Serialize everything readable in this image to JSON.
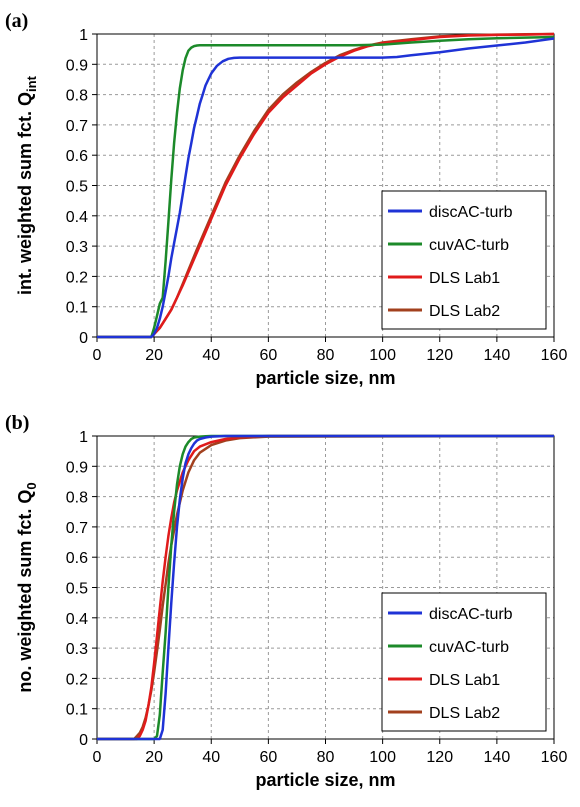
{
  "chart_data": [
    {
      "type": "line",
      "panel_label": "(a)",
      "xlabel": "particle size, nm",
      "ylabel_main": "int. weighted sum fct. Q",
      "ylabel_sub": "int",
      "xlim": [
        0,
        160
      ],
      "ylim": [
        0,
        1
      ],
      "xticks": [
        0,
        20,
        40,
        60,
        80,
        100,
        120,
        140,
        160
      ],
      "yticks": [
        0,
        0.1,
        0.2,
        0.3,
        0.4,
        0.5,
        0.6,
        0.7,
        0.8,
        0.9,
        1
      ],
      "ytick_labels": [
        "0",
        "0.1",
        "0.2",
        "0.3",
        "0.4",
        "0.5",
        "0.6",
        "0.7",
        "0.8",
        "0.9",
        "1"
      ],
      "grid": true,
      "legend_position": "bottom-right",
      "series": [
        {
          "name": "discAC-turb",
          "color": "#1f33d6",
          "x": [
            0,
            19,
            20,
            21,
            22,
            23,
            24,
            25,
            26,
            27,
            28,
            29,
            30,
            31,
            32,
            33,
            34,
            35,
            36,
            37,
            38,
            39,
            40,
            42,
            44,
            46,
            48,
            50,
            60,
            70,
            80,
            90,
            100,
            105,
            110,
            120,
            130,
            140,
            150,
            160
          ],
          "y": [
            0,
            0,
            0.01,
            0.03,
            0.06,
            0.1,
            0.15,
            0.2,
            0.26,
            0.31,
            0.36,
            0.41,
            0.47,
            0.53,
            0.59,
            0.64,
            0.69,
            0.73,
            0.77,
            0.8,
            0.83,
            0.85,
            0.87,
            0.895,
            0.91,
            0.918,
            0.921,
            0.922,
            0.922,
            0.922,
            0.922,
            0.922,
            0.922,
            0.924,
            0.93,
            0.94,
            0.952,
            0.962,
            0.972,
            0.985
          ]
        },
        {
          "name": "cuvAC-turb",
          "color": "#1c8a2a",
          "x": [
            0,
            19,
            20,
            21,
            22,
            23,
            24,
            25,
            26,
            27,
            28,
            29,
            30,
            31,
            32,
            33,
            34,
            35,
            36,
            40,
            50,
            60,
            70,
            80,
            90,
            100,
            110,
            120,
            130,
            140,
            150,
            160
          ],
          "y": [
            0,
            0,
            0.03,
            0.07,
            0.11,
            0.13,
            0.25,
            0.38,
            0.52,
            0.64,
            0.74,
            0.82,
            0.88,
            0.92,
            0.945,
            0.955,
            0.96,
            0.962,
            0.963,
            0.963,
            0.963,
            0.963,
            0.963,
            0.963,
            0.963,
            0.965,
            0.972,
            0.978,
            0.983,
            0.986,
            0.988,
            0.99
          ]
        },
        {
          "name": "DLS Lab1",
          "color": "#e01b1b",
          "x": [
            0,
            19,
            20,
            22,
            24,
            26,
            28,
            30,
            35,
            40,
            45,
            50,
            55,
            60,
            65,
            70,
            75,
            80,
            85,
            90,
            95,
            100,
            110,
            120,
            130,
            140,
            150,
            160
          ],
          "y": [
            0,
            0,
            0.01,
            0.03,
            0.06,
            0.09,
            0.13,
            0.17,
            0.28,
            0.39,
            0.5,
            0.59,
            0.67,
            0.74,
            0.79,
            0.83,
            0.87,
            0.9,
            0.925,
            0.945,
            0.96,
            0.97,
            0.98,
            0.99,
            0.995,
            0.997,
            0.998,
            1
          ]
        },
        {
          "name": "DLS Lab2",
          "color": "#a2401e",
          "x": [
            0,
            19,
            20,
            22,
            24,
            26,
            28,
            30,
            35,
            40,
            45,
            50,
            55,
            60,
            65,
            70,
            75,
            80,
            85,
            90,
            95,
            100,
            110,
            120,
            130,
            140,
            150,
            160
          ],
          "y": [
            0,
            0,
            0.01,
            0.03,
            0.06,
            0.09,
            0.13,
            0.175,
            0.29,
            0.4,
            0.51,
            0.6,
            0.68,
            0.75,
            0.8,
            0.84,
            0.875,
            0.905,
            0.93,
            0.948,
            0.962,
            0.972,
            0.983,
            0.992,
            0.996,
            0.998,
            0.999,
            1
          ]
        }
      ]
    },
    {
      "type": "line",
      "panel_label": "(b)",
      "xlabel": "particle size, nm",
      "ylabel_main": "no. weighted sum fct. Q",
      "ylabel_sub": "0",
      "xlim": [
        0,
        160
      ],
      "ylim": [
        0,
        1
      ],
      "xticks": [
        0,
        20,
        40,
        60,
        80,
        100,
        120,
        140,
        160
      ],
      "yticks": [
        0,
        0.1,
        0.2,
        0.3,
        0.4,
        0.5,
        0.6,
        0.7,
        0.8,
        0.9,
        1
      ],
      "ytick_labels": [
        "0",
        "0.1",
        "0.2",
        "0.3",
        "0.4",
        "0.5",
        "0.6",
        "0.7",
        "0.8",
        "0.9",
        "1"
      ],
      "grid": true,
      "legend_position": "bottom-right",
      "series": [
        {
          "name": "discAC-turb",
          "color": "#1f33d6",
          "x": [
            0,
            22,
            23,
            24,
            25,
            26,
            27,
            28,
            29,
            30,
            31,
            32,
            33,
            34,
            35,
            36,
            38,
            40,
            45,
            50,
            160
          ],
          "y": [
            0,
            0,
            0.03,
            0.15,
            0.3,
            0.45,
            0.58,
            0.7,
            0.79,
            0.86,
            0.91,
            0.94,
            0.96,
            0.975,
            0.985,
            0.99,
            0.995,
            0.998,
            1,
            1,
            1
          ]
        },
        {
          "name": "cuvAC-turb",
          "color": "#1c8a2a",
          "x": [
            0,
            20,
            21,
            22,
            23,
            24,
            25,
            26,
            27,
            28,
            29,
            30,
            31,
            32,
            33,
            34,
            36,
            38,
            40,
            110,
            160
          ],
          "y": [
            0,
            0,
            0.01,
            0.08,
            0.22,
            0.35,
            0.5,
            0.64,
            0.75,
            0.84,
            0.9,
            0.94,
            0.965,
            0.98,
            0.99,
            0.995,
            0.998,
            0.999,
            1,
            1,
            1
          ]
        },
        {
          "name": "DLS Lab1",
          "color": "#e01b1b",
          "x": [
            0,
            14,
            15,
            16,
            17,
            18,
            19,
            20,
            21,
            22,
            23,
            24,
            25,
            26,
            27,
            28,
            30,
            32,
            34,
            36,
            40,
            45,
            50,
            60,
            160
          ],
          "y": [
            0,
            0,
            0.01,
            0.03,
            0.06,
            0.11,
            0.17,
            0.25,
            0.34,
            0.43,
            0.52,
            0.6,
            0.67,
            0.73,
            0.78,
            0.82,
            0.88,
            0.92,
            0.95,
            0.965,
            0.98,
            0.99,
            0.996,
            1,
            1
          ]
        },
        {
          "name": "DLS Lab2",
          "color": "#a2401e",
          "x": [
            0,
            13,
            14,
            15,
            16,
            17,
            18,
            19,
            20,
            21,
            22,
            23,
            24,
            25,
            26,
            28,
            30,
            32,
            34,
            36,
            40,
            45,
            50,
            60,
            160
          ],
          "y": [
            0,
            0,
            0.01,
            0.02,
            0.04,
            0.07,
            0.11,
            0.16,
            0.22,
            0.29,
            0.36,
            0.44,
            0.51,
            0.58,
            0.64,
            0.74,
            0.82,
            0.88,
            0.92,
            0.945,
            0.97,
            0.985,
            0.993,
            0.998,
            1
          ]
        }
      ]
    }
  ]
}
